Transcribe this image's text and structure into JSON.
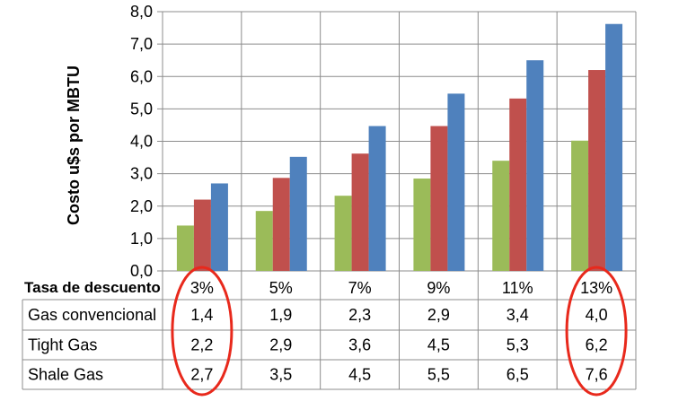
{
  "chart_data": {
    "type": "bar",
    "ylabel": "Costo u$s por MBTU",
    "ylim": [
      0,
      8
    ],
    "ytick_labels": [
      "0,0",
      "1,0",
      "2,0",
      "3,0",
      "4,0",
      "5,0",
      "6,0",
      "7,0",
      "8,0"
    ],
    "grid": true,
    "table_header": "Tasa de descuento",
    "categories": [
      "3%",
      "5%",
      "7%",
      "9%",
      "11%",
      "13%"
    ],
    "series": [
      {
        "name": "Gas convencional",
        "color": "#9BBB59",
        "values": [
          1.4,
          1.85,
          2.32,
          2.85,
          3.4,
          4.02
        ],
        "labels": [
          "1,4",
          "1,9",
          "2,3",
          "2,9",
          "3,4",
          "4,0"
        ]
      },
      {
        "name": "Tight Gas",
        "color": "#C0504D",
        "values": [
          2.2,
          2.87,
          3.62,
          4.47,
          5.32,
          6.2
        ],
        "labels": [
          "2,2",
          "2,9",
          "3,6",
          "4,5",
          "5,3",
          "6,2"
        ]
      },
      {
        "name": "Shale Gas",
        "color": "#4F81BD",
        "values": [
          2.7,
          3.52,
          4.47,
          5.47,
          6.5,
          7.62
        ],
        "labels": [
          "2,7",
          "3,5",
          "4,5",
          "5,5",
          "6,5",
          "7,6"
        ]
      }
    ],
    "highlighted_categories": [
      "3%",
      "13%"
    ],
    "highlight_color": "#E8291C"
  }
}
